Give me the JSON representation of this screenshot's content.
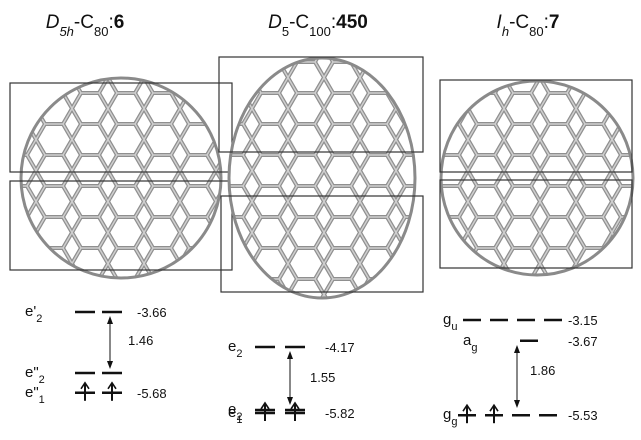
{
  "panels": [
    {
      "title": [
        {
          "text": "D",
          "style": "italic"
        },
        {
          "text": "5h",
          "style": "italic-sub"
        },
        {
          "text": "-C",
          "style": "normal"
        },
        {
          "text": "80",
          "style": "sub"
        },
        {
          "text": ":",
          "style": "normal"
        },
        {
          "text": "6",
          "style": "bold"
        }
      ],
      "levels": [
        {
          "label": {
            "base": "e'",
            "sub": "2"
          },
          "energy": -3.66,
          "bars": 2,
          "occupied": 0
        },
        {
          "label": {
            "base": "e\"",
            "sub": "2"
          },
          "bars": 2,
          "occupied": 0
        },
        {
          "label": {
            "base": "e\"",
            "sub": "1"
          },
          "energy": -5.68,
          "bars": 2,
          "occupied": 2
        }
      ],
      "gap": 1.46
    },
    {
      "title": [
        {
          "text": "D",
          "style": "italic"
        },
        {
          "text": "5",
          "style": "sub"
        },
        {
          "text": "-C",
          "style": "normal"
        },
        {
          "text": "100",
          "style": "sub"
        },
        {
          "text": ":",
          "style": "normal"
        },
        {
          "text": "450",
          "style": "bold"
        }
      ],
      "levels": [
        {
          "label": {
            "base": "e",
            "sub": "2"
          },
          "energy": -4.17,
          "bars": 2,
          "occupied": 0
        },
        {
          "label": {
            "base": "e",
            "sub": "2"
          },
          "bars": 2,
          "occupied": 0
        },
        {
          "label": {
            "base": "e",
            "sub": "1"
          },
          "energy": -5.82,
          "bars": 2,
          "occupied": 2
        }
      ],
      "gap": 1.55
    },
    {
      "title": [
        {
          "text": "I",
          "style": "italic"
        },
        {
          "text": "h",
          "style": "italic-sub"
        },
        {
          "text": "-C",
          "style": "normal"
        },
        {
          "text": "80",
          "style": "sub"
        },
        {
          "text": ":",
          "style": "normal"
        },
        {
          "text": "7",
          "style": "bold"
        }
      ],
      "levels": [
        {
          "label": {
            "base": "g",
            "sub": "u"
          },
          "energy": -3.15,
          "bars": 4,
          "occupied": 0
        },
        {
          "label": {
            "base": "a",
            "sub": "g"
          },
          "energy": -3.67,
          "bars": 1,
          "occupied": 0
        },
        {
          "label": {
            "base": "g",
            "sub": "g"
          },
          "energy": -5.53,
          "bars": 4,
          "occupied": 2
        }
      ],
      "gap": 1.86
    }
  ]
}
